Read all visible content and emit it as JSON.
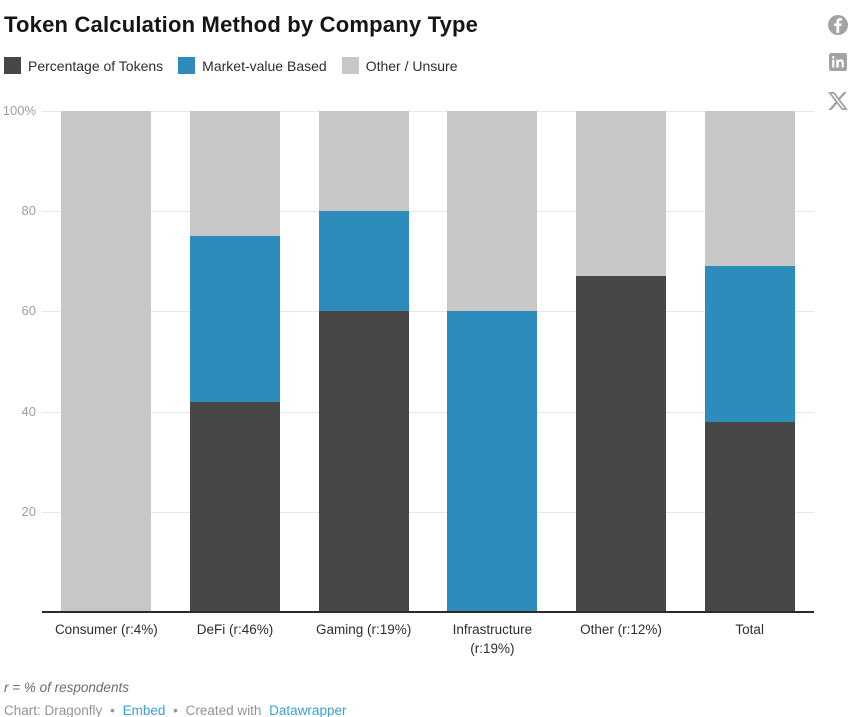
{
  "title": "Token Calculation Method by Company Type",
  "social_icons": [
    "facebook-icon",
    "linkedin-icon",
    "x-icon"
  ],
  "colors": {
    "dark": "#474747",
    "blue": "#2e8cbc",
    "light_gray": "#c7c7c7",
    "gridline": "#e8e8e8",
    "axis_line": "#2b2b2b",
    "icon_gray": "#a3a3a3",
    "link_blue": "#38a1d8"
  },
  "chart_data": {
    "type": "bar",
    "stacked": true,
    "title": "Token Calculation Method by Company Type",
    "categories": [
      "Consumer (r:4%)",
      "DeFi (r:46%)",
      "Gaming (r:19%)",
      "Infrastructure (r:19%)",
      "Other (r:12%)",
      "Total"
    ],
    "series": [
      {
        "name": "Percentage of Tokens",
        "color": "#474747",
        "values": [
          0,
          42,
          60,
          0,
          67,
          38
        ]
      },
      {
        "name": "Market-value Based",
        "color": "#2e8cbc",
        "values": [
          0,
          33,
          20,
          60,
          0,
          31
        ]
      },
      {
        "name": "Other / Unsure",
        "color": "#c7c7c7",
        "values": [
          100,
          25,
          20,
          40,
          33,
          31
        ]
      }
    ],
    "xlabel": "",
    "ylabel": "",
    "ylim": [
      0,
      100
    ],
    "yticks": [
      {
        "value": 20,
        "label": "20"
      },
      {
        "value": 40,
        "label": "40"
      },
      {
        "value": 60,
        "label": "60"
      },
      {
        "value": 80,
        "label": "80"
      },
      {
        "value": 100,
        "label": "100%"
      }
    ],
    "grid": true,
    "legend_position": "top"
  },
  "footer": {
    "note": "r = % of respondents",
    "chart_credit": "Chart: Dragonfly",
    "separator": "•",
    "embed_label": "Embed",
    "created_with": "Created with",
    "datawrapper_label": "Datawrapper"
  }
}
